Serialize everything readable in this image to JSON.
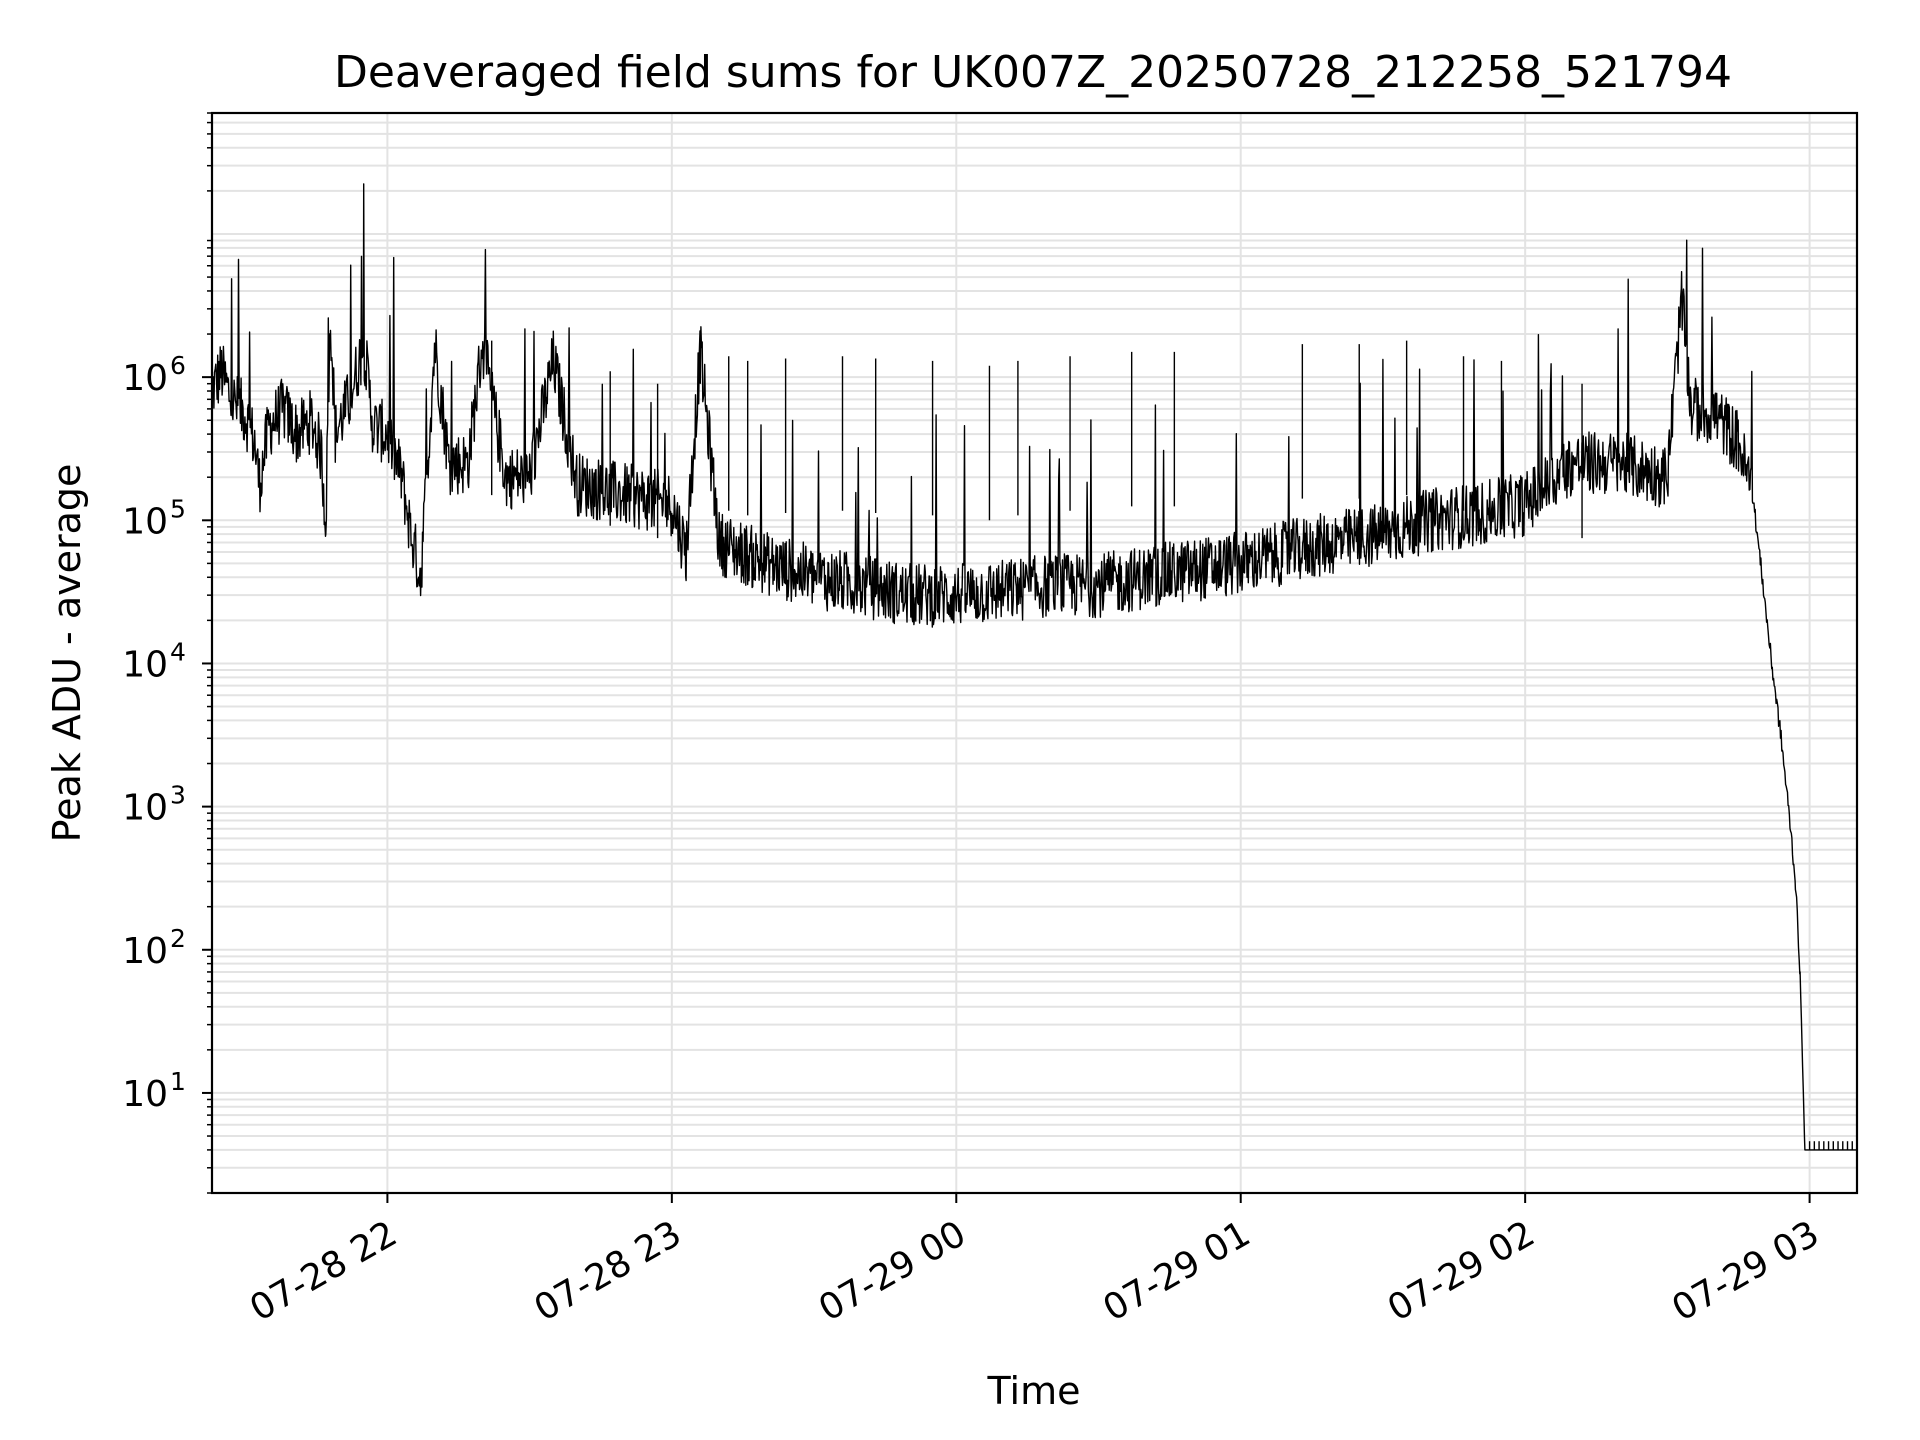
{
  "chart_data": {
    "type": "line",
    "title": "Deaveraged field sums for UK007Z_20250728_212258_521794",
    "xlabel": "Time",
    "ylabel": "Peak ADU - average",
    "y_scale": "log",
    "ylim": [
      2,
      70000000
    ],
    "xlim": [
      "2025-07-28 21:23",
      "2025-07-29 03:10"
    ],
    "grid": "major and minor",
    "legend": "none",
    "line_color": "#000000",
    "x_ticks": [
      {
        "t": "2025-07-28 22:00",
        "label": "07-28 22"
      },
      {
        "t": "2025-07-28 23:00",
        "label": "07-28 23"
      },
      {
        "t": "2025-07-29 00:00",
        "label": "07-29 00"
      },
      {
        "t": "2025-07-29 01:00",
        "label": "07-29 01"
      },
      {
        "t": "2025-07-29 02:00",
        "label": "07-29 02"
      },
      {
        "t": "2025-07-29 03:00",
        "label": "07-29 03"
      }
    ],
    "y_ticks": [
      {
        "value": 10,
        "base": "10",
        "exp": "1"
      },
      {
        "value": 100,
        "base": "10",
        "exp": "2"
      },
      {
        "value": 1000,
        "base": "10",
        "exp": "3"
      },
      {
        "value": 10000,
        "base": "10",
        "exp": "4"
      },
      {
        "value": 100000,
        "base": "10",
        "exp": "5"
      },
      {
        "value": 1000000,
        "base": "10",
        "exp": "6"
      }
    ],
    "series": [
      {
        "points": [
          [
            "2025-07-28 21:23",
            800000
          ],
          [
            "2025-07-28 21:25",
            1100000
          ],
          [
            "2025-07-28 21:27",
            700000
          ],
          [
            "2025-07-28 21:30",
            550000
          ],
          [
            "2025-07-28 21:32",
            350000
          ],
          [
            "2025-07-28 21:33",
            180000
          ],
          [
            "2025-07-28 21:35",
            450000
          ],
          [
            "2025-07-28 21:38",
            600000
          ],
          [
            "2025-07-28 21:41",
            400000
          ],
          [
            "2025-07-28 21:44",
            500000
          ],
          [
            "2025-07-28 21:46",
            300000
          ],
          [
            "2025-07-28 21:47",
            100000
          ],
          [
            "2025-07-28 21:48",
            2800000
          ],
          [
            "2025-07-28 21:49",
            400000
          ],
          [
            "2025-07-28 21:52",
            700000
          ],
          [
            "2025-07-28 21:55",
            1700000
          ],
          [
            "2025-07-28 21:57",
            450000
          ],
          [
            "2025-07-28 22:00",
            400000
          ],
          [
            "2025-07-28 22:03",
            200000
          ],
          [
            "2025-07-28 22:05",
            80000
          ],
          [
            "2025-07-28 22:07",
            40000
          ],
          [
            "2025-07-28 22:10",
            1700000
          ],
          [
            "2025-07-28 22:13",
            250000
          ],
          [
            "2025-07-28 22:17",
            250000
          ],
          [
            "2025-07-28 22:20",
            1700000
          ],
          [
            "2025-07-28 22:25",
            200000
          ],
          [
            "2025-07-28 22:30",
            200000
          ],
          [
            "2025-07-28 22:35",
            1300000
          ],
          [
            "2025-07-28 22:40",
            180000
          ],
          [
            "2025-07-28 22:50",
            150000
          ],
          [
            "2025-07-28 23:00",
            130000
          ],
          [
            "2025-07-28 23:03",
            60000
          ],
          [
            "2025-07-28 23:06",
            1500000
          ],
          [
            "2025-07-28 23:10",
            70000
          ],
          [
            "2025-07-28 23:20",
            50000
          ],
          [
            "2025-07-28 23:30",
            40000
          ],
          [
            "2025-07-28 23:40",
            35000
          ],
          [
            "2025-07-28 23:50",
            30000
          ],
          [
            "2025-07-29 00:00",
            30000
          ],
          [
            "2025-07-29 00:10",
            32000
          ],
          [
            "2025-07-29 00:20",
            35000
          ],
          [
            "2025-07-29 00:30",
            35000
          ],
          [
            "2025-07-29 00:40",
            40000
          ],
          [
            "2025-07-29 00:50",
            45000
          ],
          [
            "2025-07-29 01:00",
            50000
          ],
          [
            "2025-07-29 01:10",
            60000
          ],
          [
            "2025-07-29 01:20",
            70000
          ],
          [
            "2025-07-29 01:30",
            80000
          ],
          [
            "2025-07-29 01:40",
            100000
          ],
          [
            "2025-07-29 01:50",
            110000
          ],
          [
            "2025-07-29 02:00",
            130000
          ],
          [
            "2025-07-29 02:10",
            250000
          ],
          [
            "2025-07-29 02:20",
            250000
          ],
          [
            "2025-07-29 02:30",
            200000
          ],
          [
            "2025-07-29 02:33",
            3500000
          ],
          [
            "2025-07-29 02:35",
            600000
          ],
          [
            "2025-07-29 02:40",
            550000
          ],
          [
            "2025-07-29 02:45",
            350000
          ],
          [
            "2025-07-29 02:48",
            150000
          ],
          [
            "2025-07-29 02:50",
            40000
          ],
          [
            "2025-07-29 02:52",
            10000
          ],
          [
            "2025-07-29 02:54",
            3000
          ],
          [
            "2025-07-29 02:56",
            700
          ],
          [
            "2025-07-29 02:57",
            300
          ],
          [
            "2025-07-29 02:58",
            70
          ],
          [
            "2025-07-29 02:59",
            4
          ],
          [
            "2025-07-29 03:10",
            4
          ]
        ],
        "spikes": [
          [
            "2025-07-28 22:22",
            1800000
          ],
          [
            "2025-07-28 22:47",
            1100000
          ],
          [
            "2025-07-28 22:57",
            900000
          ],
          [
            "2025-07-28 23:12",
            1400000
          ],
          [
            "2025-07-28 23:16",
            1300000
          ],
          [
            "2025-07-28 23:24",
            1350000
          ],
          [
            "2025-07-28 23:36",
            1400000
          ],
          [
            "2025-07-28 23:43",
            1350000
          ],
          [
            "2025-07-28 23:55",
            1300000
          ],
          [
            "2025-07-29 00:07",
            1200000
          ],
          [
            "2025-07-29 00:13",
            1300000
          ],
          [
            "2025-07-29 00:24",
            1400000
          ],
          [
            "2025-07-29 00:37",
            1500000
          ],
          [
            "2025-07-29 00:46",
            1500000
          ],
          [
            "2025-07-29 01:13",
            1700000
          ],
          [
            "2025-07-29 01:25",
            1700000
          ],
          [
            "2025-07-29 01:35",
            1800000
          ],
          [
            "2025-07-29 01:47",
            1400000
          ],
          [
            "2025-07-29 01:55",
            1300000
          ],
          [
            "2025-07-29 02:12",
            900000
          ]
        ],
        "tail_ticks": [
          [
            "2025-07-29 03:00",
            4.6
          ],
          [
            "2025-07-29 03:01",
            4.6
          ],
          [
            "2025-07-29 03:02",
            4.6
          ],
          [
            "2025-07-29 03:03",
            4.6
          ],
          [
            "2025-07-29 03:04",
            4.6
          ],
          [
            "2025-07-29 03:05",
            4.6
          ],
          [
            "2025-07-29 03:06",
            4.6
          ],
          [
            "2025-07-29 03:07",
            4.6
          ],
          [
            "2025-07-29 03:08",
            4.6
          ],
          [
            "2025-07-29 03:09",
            4.6
          ]
        ]
      }
    ]
  }
}
